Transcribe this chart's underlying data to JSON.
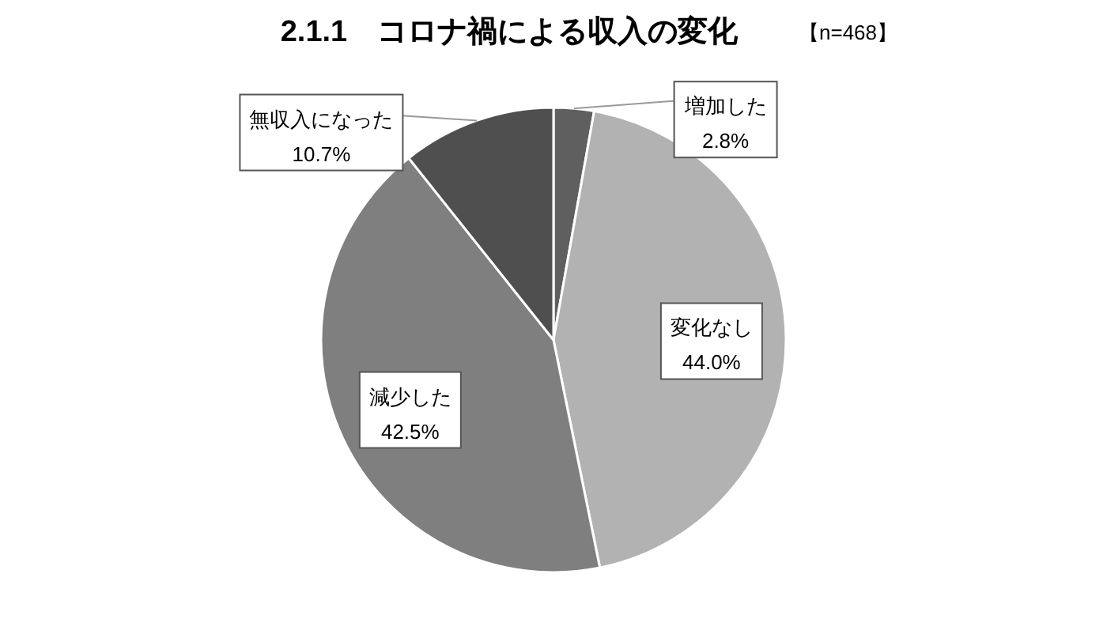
{
  "chart_data": {
    "type": "pie",
    "title": "2.1.1　コロナ禍による収入の変化",
    "annotations": [
      "【n=468】"
    ],
    "categories": [
      "増加した",
      "変化なし",
      "減少した",
      "無収入になった"
    ],
    "values": [
      2.8,
      44.0,
      42.5,
      10.7
    ],
    "colors": [
      "#5f5f5f",
      "#b2b2b2",
      "#7f7f7f",
      "#4f4f4f"
    ],
    "value_labels": [
      "2.8%",
      "44.0%",
      "42.5%",
      "10.7%"
    ]
  }
}
